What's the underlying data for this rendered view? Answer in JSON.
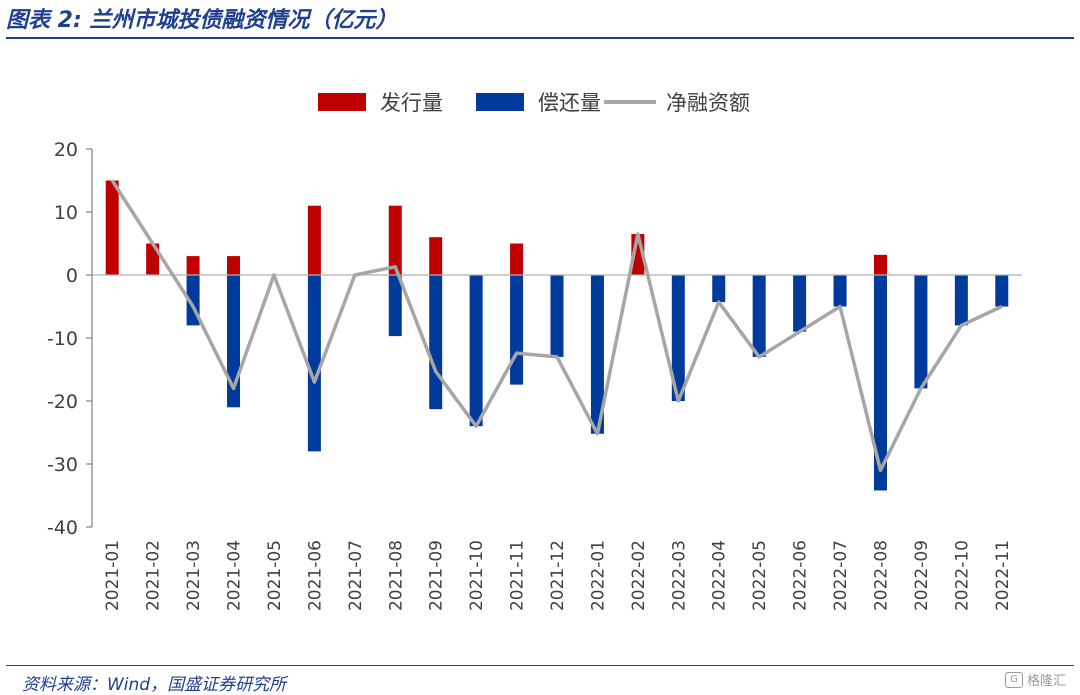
{
  "figure": {
    "title": "图表 2: 兰州市城投债融资情况（亿元）",
    "source": "资料来源：Wind，国盛证券研究所",
    "watermark": "格隆汇"
  },
  "colors": {
    "issuance": "#c00000",
    "repayment": "#003a9b",
    "net": "#a6a6a6",
    "title": "#1f3f8f"
  },
  "chart_data": {
    "type": "bar",
    "categories": [
      "2021-01",
      "2021-02",
      "2021-03",
      "2021-04",
      "2021-05",
      "2021-06",
      "2021-07",
      "2021-08",
      "2021-09",
      "2021-10",
      "2021-11",
      "2021-12",
      "2022-01",
      "2022-02",
      "2022-03",
      "2022-04",
      "2022-05",
      "2022-06",
      "2022-07",
      "2022-08",
      "2022-09",
      "2022-10",
      "2022-11"
    ],
    "series": [
      {
        "name": "发行量",
        "type": "bar",
        "values": [
          15,
          5,
          3,
          3,
          0,
          11,
          0,
          11,
          6,
          0,
          5,
          0,
          0,
          6.5,
          0,
          0,
          0,
          0,
          0,
          3.2,
          0,
          0,
          0
        ]
      },
      {
        "name": "偿还量",
        "type": "bar",
        "values": [
          0,
          0,
          -8,
          -21,
          0,
          -28,
          0,
          -9.7,
          -21.3,
          -24,
          -17.4,
          -13,
          -25.2,
          0,
          -20,
          -4.3,
          -13,
          -9,
          -5,
          -34.2,
          -18,
          -8,
          -5
        ]
      },
      {
        "name": "净融资额",
        "type": "line",
        "values": [
          15,
          5,
          -5,
          -18,
          0,
          -17,
          0,
          1.3,
          -15.3,
          -24,
          -12.4,
          -13,
          -25.2,
          6.5,
          -20,
          -4.3,
          -13,
          -9,
          -5,
          -31,
          -18,
          -8,
          -5
        ]
      }
    ],
    "ylim": [
      -40,
      20
    ],
    "yticks": [
      20,
      10,
      0,
      -10,
      -20,
      -30,
      -40
    ],
    "legend_position": "top"
  }
}
